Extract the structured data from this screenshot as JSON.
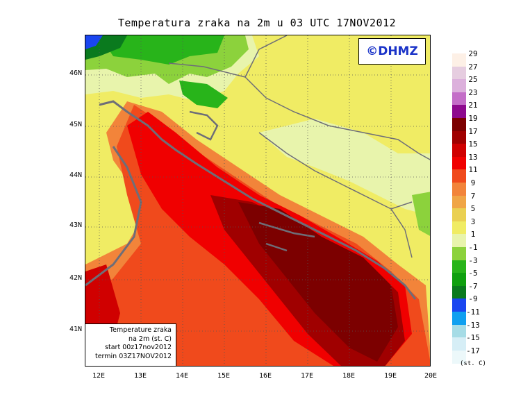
{
  "title": "Temperatura zraka na 2m u 03 UTC 17NOV2012",
  "copyright": "©DHMZ",
  "info_box": {
    "line1": "Temperature zraka",
    "line2": "na 2m (st. C)",
    "line3": "start 00z17nov2012",
    "line4": "termin 03Z17NOV2012"
  },
  "latitude_labels": [
    "46N",
    "45N",
    "44N",
    "43N",
    "42N",
    "41N"
  ],
  "longitude_labels": [
    "12E",
    "13E",
    "14E",
    "15E",
    "16E",
    "17E",
    "18E",
    "19E",
    "20E"
  ],
  "legend": {
    "unit": "(st. C)",
    "levels": [
      {
        "label": "29",
        "color": "#fdf0e6"
      },
      {
        "label": "27",
        "color": "#e6cde0"
      },
      {
        "label": "25",
        "color": "#dcb0dc"
      },
      {
        "label": "23",
        "color": "#c46ec8"
      },
      {
        "label": "21",
        "color": "#8e0a8e"
      },
      {
        "label": "19",
        "color": "#7c0000"
      },
      {
        "label": "17",
        "color": "#a00000"
      },
      {
        "label": "15",
        "color": "#d00000"
      },
      {
        "label": "13",
        "color": "#f00000"
      },
      {
        "label": "11",
        "color": "#f04a1c"
      },
      {
        "label": "9",
        "color": "#f2843a"
      },
      {
        "label": "7",
        "color": "#f0a546"
      },
      {
        "label": "5",
        "color": "#ead052"
      },
      {
        "label": "3",
        "color": "#f0ec64"
      },
      {
        "label": "1",
        "color": "#e8f4ac"
      },
      {
        "label": "-1",
        "color": "#8cd23c"
      },
      {
        "label": "-3",
        "color": "#28b41a"
      },
      {
        "label": "-5",
        "color": "#0fa00f"
      },
      {
        "label": "-7",
        "color": "#0a7a1e"
      },
      {
        "label": "-9",
        "color": "#1a46f0"
      },
      {
        "label": "-11",
        "color": "#10a0f0"
      },
      {
        "label": "-13",
        "color": "#a6dce6"
      },
      {
        "label": "-15",
        "color": "#d6eef6"
      },
      {
        "label": "-17",
        "color": "#ecf8fa"
      }
    ]
  }
}
